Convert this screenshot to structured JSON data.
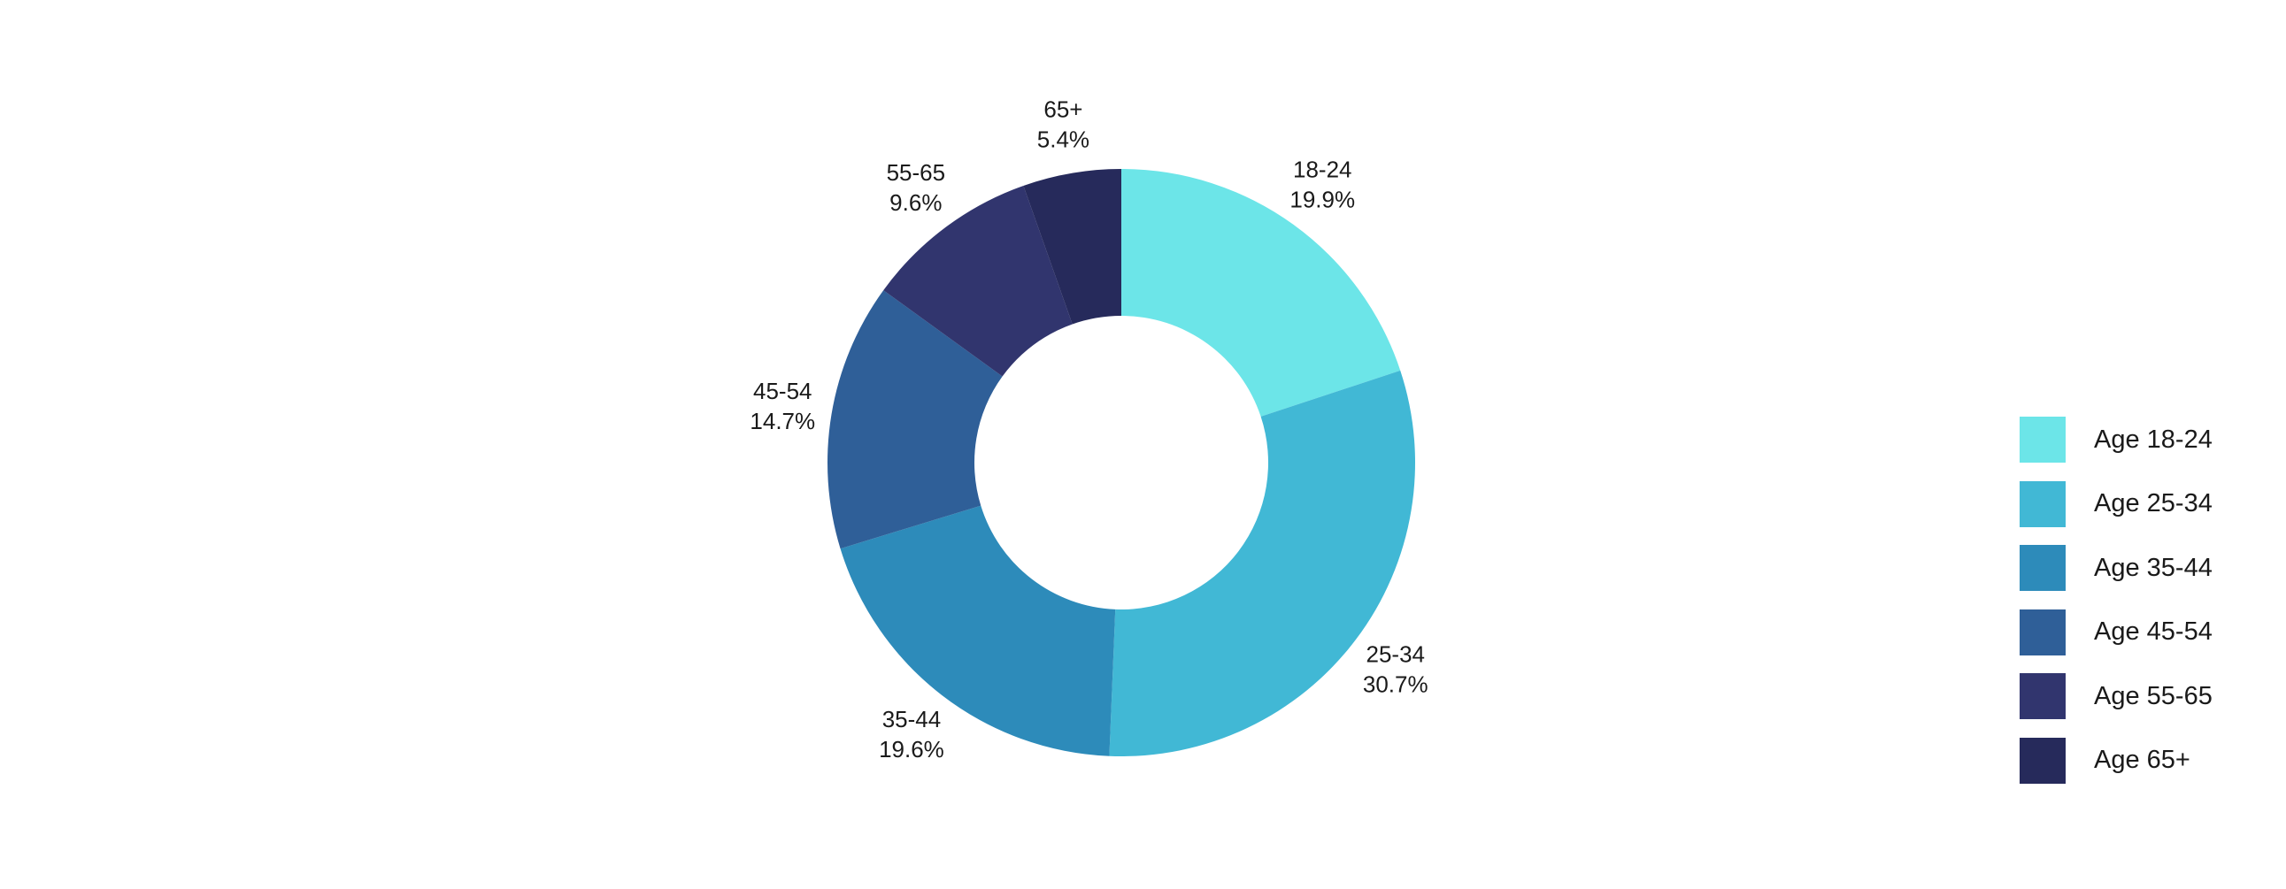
{
  "chart_data": {
    "type": "pie",
    "variant": "donut",
    "categories": [
      "18-24",
      "25-34",
      "35-44",
      "45-54",
      "55-65",
      "65+"
    ],
    "values": [
      19.9,
      30.7,
      19.6,
      14.7,
      9.6,
      5.4
    ],
    "value_labels": [
      "19.9%",
      "30.7%",
      "19.6%",
      "14.7%",
      "9.6%",
      "5.4%"
    ],
    "legend_labels": [
      "Age 18-24",
      "Age 25-34",
      "Age 35-44",
      "Age 45-54",
      "Age 55-65",
      "Age 65+"
    ],
    "colors": [
      "#6ce5e8",
      "#41b8d5",
      "#2d8bba",
      "#2f5f98",
      "#31356e",
      "#262a5b"
    ],
    "legend_position": "right",
    "title": ""
  }
}
